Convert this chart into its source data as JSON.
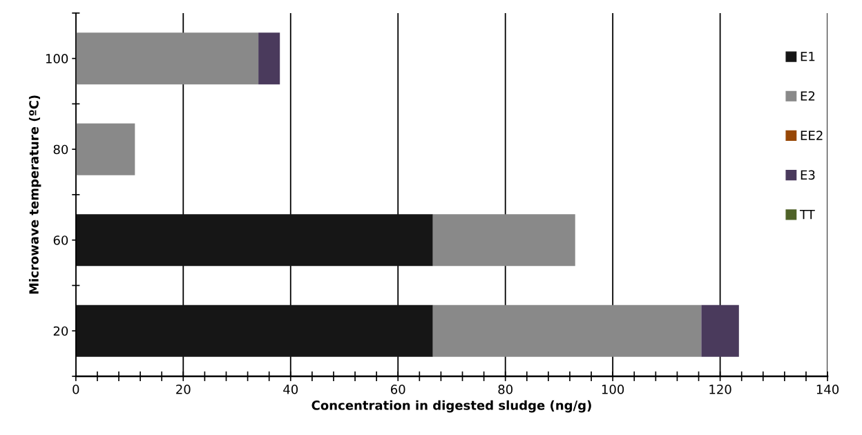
{
  "chart_data": {
    "type": "bar",
    "orientation": "horizontal",
    "stacked": true,
    "xlabel": "Concentration in digested sludge (ng/g)",
    "ylabel": "Microwave temperature (ºC)",
    "categories": [
      "100",
      "80",
      "60",
      "20"
    ],
    "series": [
      {
        "name": "E1",
        "color": "#161616",
        "values": [
          0,
          0,
          66.5,
          66.5
        ]
      },
      {
        "name": "E2",
        "color": "#898989",
        "values": [
          34,
          11,
          26.5,
          50
        ]
      },
      {
        "name": "EE2",
        "color": "#974706",
        "values": [
          0,
          0,
          0,
          0
        ]
      },
      {
        "name": "E3",
        "color": "#4a3a5c",
        "values": [
          4,
          0,
          0,
          7
        ]
      },
      {
        "name": "TT",
        "color": "#4f6228",
        "values": [
          0,
          0,
          0,
          0
        ]
      }
    ],
    "xlim": [
      0,
      140
    ],
    "xticks": [
      0,
      20,
      40,
      60,
      80,
      100,
      120,
      140
    ],
    "grid": "x",
    "legend": "right"
  }
}
